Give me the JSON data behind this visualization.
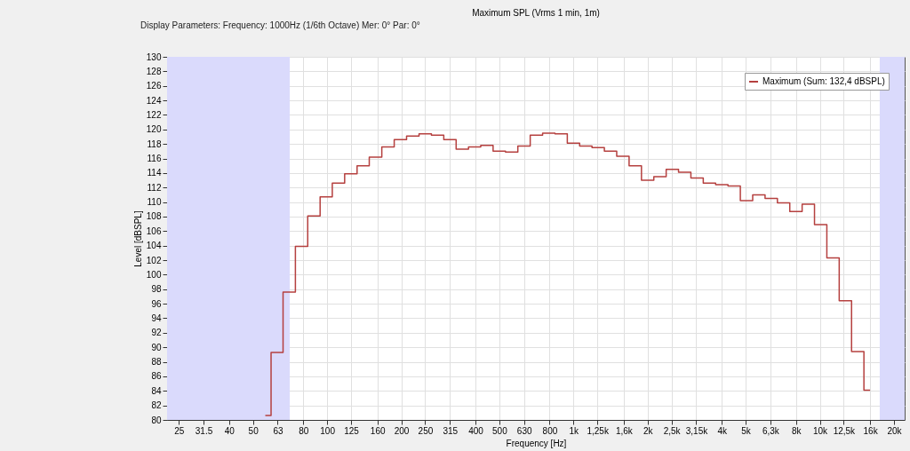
{
  "chart_data": {
    "type": "step",
    "title": "Maximum SPL (Vrms 1 min, 1m)",
    "xlabel": "Frequency [Hz]",
    "ylabel": "Level [dBSPL]",
    "annotations": [
      "Display Parameters:   Frequency: 1000Hz (1/6th Octave)   Mer: 0°   Par: 0°"
    ],
    "x": [
      56.1,
      62.5,
      70.2,
      78.7,
      88.4,
      99.2,
      111,
      125,
      140,
      157,
      177,
      198,
      223,
      250,
      281,
      315,
      354,
      397,
      445,
      500,
      561,
      630,
      707,
      794,
      891,
      1000,
      1122,
      1260,
      1414,
      1587,
      1782,
      2000,
      2245,
      2520,
      2828,
      3175,
      3564,
      4000,
      4490,
      5040,
      5657,
      6350,
      7127,
      8000,
      8980,
      10079,
      11314,
      12699,
      14254,
      16000
    ],
    "series": [
      {
        "name": "Maximum (Sum: 132,4 dBSPL)",
        "color": "#b5403f",
        "values": [
          80.6,
          89.3,
          97.6,
          103.9,
          108.1,
          110.7,
          112.6,
          113.9,
          115.0,
          116.2,
          117.6,
          118.6,
          119.1,
          119.4,
          119.2,
          118.6,
          117.3,
          117.6,
          117.8,
          117.0,
          116.9,
          117.7,
          119.2,
          119.5,
          119.4,
          118.1,
          117.7,
          117.5,
          117.0,
          116.3,
          115.0,
          113.0,
          113.5,
          114.5,
          114.1,
          113.3,
          112.6,
          112.4,
          112.2,
          110.2,
          111.0,
          110.5,
          109.9,
          108.7,
          109.7,
          106.9,
          102.3,
          96.4,
          89.4,
          84.1
        ]
      }
    ],
    "log": "x",
    "xlim": [
      22.4,
      22100
    ],
    "ylim": [
      80,
      130
    ],
    "xticks": [
      25,
      31.5,
      40,
      50,
      63,
      80,
      100,
      125,
      160,
      200,
      250,
      315,
      400,
      500,
      630,
      800,
      {
        "value": 1000,
        "label": "1k"
      },
      {
        "value": 1250,
        "label": "1,25k"
      },
      {
        "value": 1600,
        "label": "1,6k"
      },
      {
        "value": 2000,
        "label": "2k"
      },
      {
        "value": 2500,
        "label": "2,5k"
      },
      {
        "value": 3150,
        "label": "3,15k"
      },
      {
        "value": 4000,
        "label": "4k"
      },
      {
        "value": 5000,
        "label": "5k"
      },
      {
        "value": 6300,
        "label": "6,3k"
      },
      {
        "value": 8000,
        "label": "8k"
      },
      {
        "value": 10000,
        "label": "10k"
      },
      {
        "value": 12500,
        "label": "12,5k"
      },
      {
        "value": 16000,
        "label": "16k"
      },
      {
        "value": 20000,
        "label": "20k"
      }
    ],
    "yticks": [
      80,
      82,
      84,
      86,
      88,
      90,
      92,
      94,
      96,
      98,
      100,
      102,
      104,
      106,
      108,
      110,
      112,
      114,
      116,
      118,
      120,
      122,
      124,
      126,
      128,
      130
    ],
    "bands": [
      {
        "axis": "x",
        "from": 22.4,
        "to": 70.5,
        "color": "#dadafc"
      },
      {
        "axis": "x",
        "from": 17500,
        "to": 22100,
        "color": "#dadafc"
      }
    ],
    "grid": true,
    "legend": "top right",
    "line_style": "solid",
    "marker": "none"
  }
}
